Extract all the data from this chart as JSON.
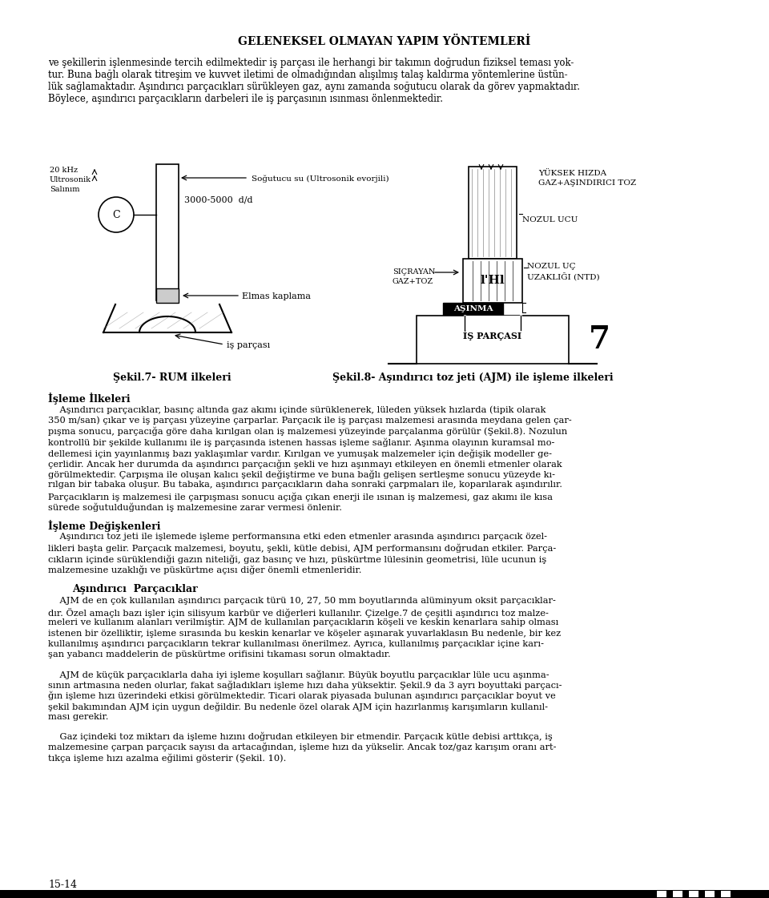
{
  "title": "GELENEKSEL OLMAYAN YAPIM YÖNTEMLERİ",
  "intro_text": "ve şekillerin işlenmesinde tercih edilmektedir iş parçası ile herhangi bir takımın doğrudun fiziksel teması yok-\ntur. Buna bağlı olarak titreşim ve kuvvet iletimi de olmadığından alışılmış talaş kaldırma yöntemlerine üstün-\nlük sağlamaktadır. Aşındırıcı parçacıkları sürükleyen gaz, aynı zamanda soğutucu olarak da görev yapmaktadır.\nBöylece, aşındırıcı parçacıkların darbeleri ile iş parçasının ısınması önlenmektedir.",
  "fig7_caption": "Şekil.7- RUM ilkeleri",
  "fig8_caption": "Şekil.8- Aşındırıcı toz jeti (AJM) ile işleme ilkeleri",
  "section1_title": "İşleme İlkeleri",
  "section1_text": "    Aşındırıcı parçacıklar, basınç altında gaz akımı içinde sürüklenerek, lüleden yüksek hızlarda (tipik olarak\n350 m/san) çıkar ve iş parçası yüzeyine çarparlar. Parçacık ile iş parçası malzemesi arasında meydana gelen çar-\npışma sonucu, parçacığa göre daha kırılgan olan iş malzemesi yüzeyinde parçalanma görülür (Şekil.8). Nozulun\nkontrollü bir şekilde kullanımı ile iş parçasında istenen hassas işleme sağlanır. Aşınma olayının kuramsal mo-\ndellemesi için yayınlanmış bazı yaklaşımlar vardır. Kırılgan ve yumuşak malzemeler için değişik modeller ge-\nçerlidir. Ancak her durumda da aşındırıcı parçacığın şekli ve hızı aşınmayı etkileyen en önemli etmenler olarak\ngörülmektedir. Çarpışma ile oluşan kalıcı şekil değiştirme ve buna bağlı gelişen sertleşme sonucu yüzeyde kı-\nrılgan bir tabaka oluşur. Bu tabaka, aşındırıcı parçacıkların daha sonraki çarpmaları ile, koparılarak aşındırılır.\nParçacıkların iş malzemesi ile çarpışması sonucu açığa çıkan enerji ile ısınan iş malzemesi, gaz akımı ile kısa\nsürede soğutulduğundan iş malzemesine zarar vermesi önlenir.",
  "section2_title": "İşleme Değişkenleri",
  "section2_text": "    Aşındırıcı toz jeti ile işlemede işleme performansına etki eden etmenler arasında aşındırıcı parçacık özel-\nlikleri başta gelir. Parçacık malzemesi, boyutu, şekli, kütle debisi, AJM performansını doğrudan etkiler. Parça-\ncıkların içinde sürüklendiği gazın niteliği, gaz basınç ve hızı, püskürtme lülesinin geometrisi, lüle ucunun iş\nmalzemesine uzaklığı ve püskürtme açısı diğer önemli etmenleridir.",
  "section3_title": "Aşındırıcı  Parçacıklar",
  "section3_text": "    AJM de en çok kullanılan aşındırıcı parçacık türü 10, 27, 50 mm boyutlarında alüminyum oksit parçacıklar-\ndır. Özel amaçlı bazı işler için silisyum karbür ve diğerleri kullanılır. Çizelge.7 de çeşitli aşındırıcı toz malze-\nmeleri ve kullanım alanları verilmiştir. AJM de kullanılan parçacıkların köşeli ve keskin kenarlara sahip olması\nistenen bir özelliktir, işleme sırasında bu keskin kenarlar ve köşeler aşınarak yuvarlaklasın Bu nedenle, bir kez\nkullanılmış aşındırıcı parçacıkların tekrar kullanılması önerilmez. Ayrıca, kullanılmış parçacıklar içine karı-\nşan yabancı maddelerin de püskürtme orifisini tıkaması sorun olmaktadır.",
  "section4_text": "    AJM de küçük parçacıklarla daha iyi işleme koşulları sağlanır. Büyük boyutlu parçacıklar lüle ucu aşınma-\nsının artmasına neden olurlar, fakat sağladıkları işleme hızı daha yüksektir. Şekil.9 da 3 ayrı boyuttaki parçacı-\nğın işleme hızı üzerindeki etkisi görülmektedir. Ticari olarak piyasada bulunan aşındırıcı parçacıklar boyut ve\nşekil bakımından AJM için uygun değildir. Bu nedenle özel olarak AJM için hazırlanmış karışımların kullanıl-\nması gerekir.",
  "section5_text": "    Gaz içindeki toz miktarı da işleme hızını doğrudan etkileyen bir etmendir. Parçacık kütle debisi arttıkça, iş\nmalzemesine çarpan parçacık sayısı da artacağından, işleme hızı da yükselir. Ancak toz/gaz karışım oranı art-\ntıkça işleme hızı azalma eğilimi gösterir (Şekil. 10).",
  "page_number": "15-14",
  "background_color": "#ffffff",
  "text_color": "#000000"
}
